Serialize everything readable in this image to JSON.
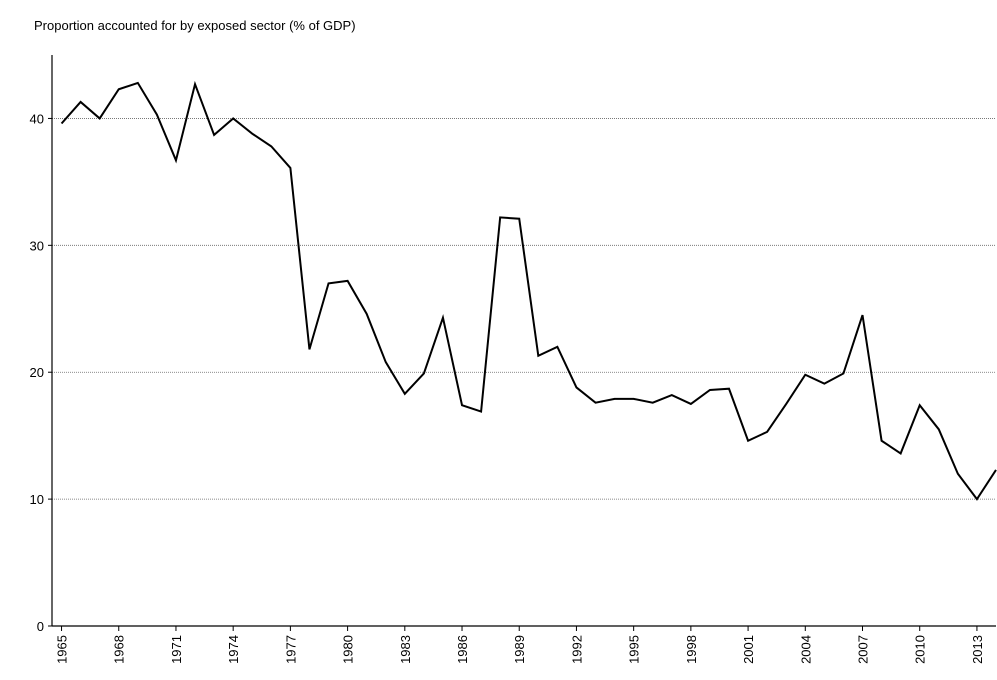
{
  "chart_data": {
    "type": "line",
    "y_axis_label": "Proportion accounted for by exposed sector (% of GDP)",
    "x": [
      1965,
      1966,
      1967,
      1968,
      1969,
      1970,
      1971,
      1972,
      1973,
      1974,
      1975,
      1976,
      1977,
      1978,
      1979,
      1980,
      1981,
      1982,
      1983,
      1984,
      1985,
      1986,
      1987,
      1988,
      1989,
      1990,
      1991,
      1992,
      1993,
      1994,
      1995,
      1996,
      1997,
      1998,
      1999,
      2000,
      2001,
      2002,
      2003,
      2004,
      2005,
      2006,
      2007,
      2008,
      2009,
      2010,
      2011,
      2012,
      2013,
      2014
    ],
    "values": [
      39.6,
      41.3,
      40.0,
      42.3,
      42.8,
      40.3,
      36.7,
      42.7,
      38.7,
      40.0,
      38.8,
      37.8,
      36.1,
      21.8,
      27.0,
      27.2,
      24.6,
      20.8,
      18.3,
      19.9,
      24.3,
      17.4,
      16.9,
      32.2,
      32.1,
      21.3,
      22.0,
      18.8,
      17.6,
      17.9,
      17.9,
      17.6,
      18.2,
      17.5,
      18.6,
      18.7,
      14.6,
      15.3,
      17.5,
      19.8,
      19.1,
      19.9,
      24.5,
      14.6,
      13.6,
      17.4,
      15.5,
      12.0,
      10.0,
      12.3
    ],
    "color": "#000000",
    "xlim": [
      1964.5,
      2014
    ],
    "xticks": [
      1965,
      1968,
      1971,
      1974,
      1977,
      1980,
      1983,
      1986,
      1989,
      1992,
      1995,
      1998,
      2001,
      2004,
      2007,
      2010,
      2013
    ],
    "ylim": [
      0,
      45
    ],
    "yticks": [
      0,
      10,
      20,
      30,
      40
    ],
    "grid": true
  }
}
